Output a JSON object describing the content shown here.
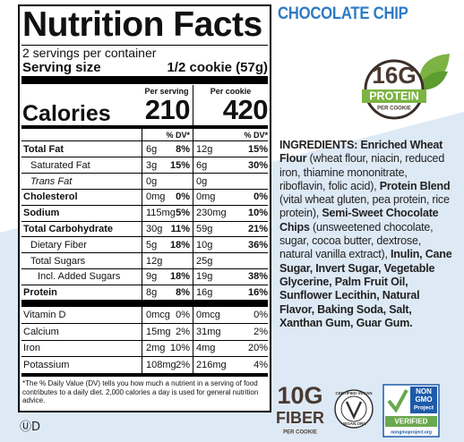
{
  "product": "CHOCOLATE CHIP",
  "nutrition_facts": {
    "title": "Nutrition Facts",
    "servings": "2 servings per container",
    "serving_size_label": "Serving size",
    "serving_size": "1/2 cookie (57g)",
    "columns": [
      "Per serving",
      "Per cookie"
    ],
    "calories_label": "Calories",
    "calories": [
      210,
      420
    ],
    "dv_header": "% DV*",
    "nutrients": [
      {
        "name": "Total Fat",
        "serving": [
          "6g",
          "8%"
        ],
        "cookie": [
          "12g",
          "15%"
        ],
        "bold": true
      },
      {
        "name": "Saturated Fat",
        "serving": [
          "3g",
          "15%"
        ],
        "cookie": [
          "6g",
          "30%"
        ],
        "indent": 1
      },
      {
        "name": "Trans Fat",
        "serving": [
          "0g"
        ],
        "cookie": [
          "0g"
        ],
        "indent": 1,
        "italic": true
      },
      {
        "name": "Cholesterol",
        "serving": [
          "0mg",
          "0%"
        ],
        "cookie": [
          "0mg",
          "0%"
        ],
        "bold": true
      },
      {
        "name": "Sodium",
        "serving": [
          "115mg",
          "5%"
        ],
        "cookie": [
          "230mg",
          "10%"
        ],
        "bold": true
      },
      {
        "name": "Total Carbohydrate",
        "serving": [
          "30g",
          "11%"
        ],
        "cookie": [
          "59g",
          "21%"
        ],
        "bold": true
      },
      {
        "name": "Dietary Fiber",
        "serving": [
          "5g",
          "18%"
        ],
        "cookie": [
          "10g",
          "36%"
        ],
        "indent": 1
      },
      {
        "name": "Total Sugars",
        "serving": [
          "12g"
        ],
        "cookie": [
          "25g"
        ],
        "indent": 1
      },
      {
        "name": "Incl. Added Sugars",
        "serving": [
          "9g",
          "18%"
        ],
        "cookie": [
          "19g",
          "38%"
        ],
        "indent": 2
      },
      {
        "name": "Protein",
        "serving": [
          "8g",
          "8%"
        ],
        "cookie": [
          "16g",
          "16%"
        ],
        "bold": true
      }
    ],
    "vitamins_minerals": [
      {
        "name": "Vitamin D",
        "serving": [
          "0mcg",
          "0%"
        ],
        "cookie": [
          "0mcg",
          "0%"
        ]
      },
      {
        "name": "Calcium",
        "serving": [
          "15mg",
          "2%"
        ],
        "cookie": [
          "31mg",
          "2%"
        ]
      },
      {
        "name": "Iron",
        "serving": [
          "2mg",
          "10%"
        ],
        "cookie": [
          "4mg",
          "20%"
        ]
      },
      {
        "name": "Potassium",
        "serving": [
          "108mg",
          "2%"
        ],
        "cookie": [
          "216mg",
          "4%"
        ]
      }
    ],
    "footnote": "*The % Daily Value (DV) tells you how much a nutrient in a serving of food contributes to a daily diet. 2,000 calories a day is used for general nutrition advice."
  },
  "protein_badge": {
    "amount": "16G",
    "label": "PROTEIN",
    "unit": "PER COOKIE"
  },
  "ingredients": [
    {
      "text": "INGREDIENTS: Enriched Wheat Flour",
      "bold": true
    },
    {
      "text": " (wheat flour, niacin, reduced iron, thiamine mononitrate, riboflavin, folic acid), "
    },
    {
      "text": "Protein Blend",
      "bold": true
    },
    {
      "text": " (vital wheat gluten, pea protein, rice protein), "
    },
    {
      "text": "Semi-Sweet Chocolate Chips",
      "bold": true
    },
    {
      "text": " (unsweetened chocolate, sugar, cocoa butter, dextrose, natural vanilla extract), "
    },
    {
      "text": "Inulin, Cane Sugar, Invert Sugar, Vegetable Glycerine, Palm Fruit Oil, Sunflower Lecithin, Natural Flavor, Baking Soda, Salt, Xanthan Gum, Guar Gum.",
      "bold": true
    }
  ],
  "fiber_badge": {
    "amount": "10G",
    "label": "FIBER",
    "unit": "PER COOKIE"
  },
  "vegan_badge": {
    "top": "CERTIFIED VEGAN",
    "bottom": "VEGAN.ORG"
  },
  "non_gmo_badge": {
    "lines": [
      "NON",
      "GMO",
      "Project"
    ],
    "verified": "VERIFIED",
    "url": "nongmoproject.org"
  },
  "kosher": "ⓊD"
}
